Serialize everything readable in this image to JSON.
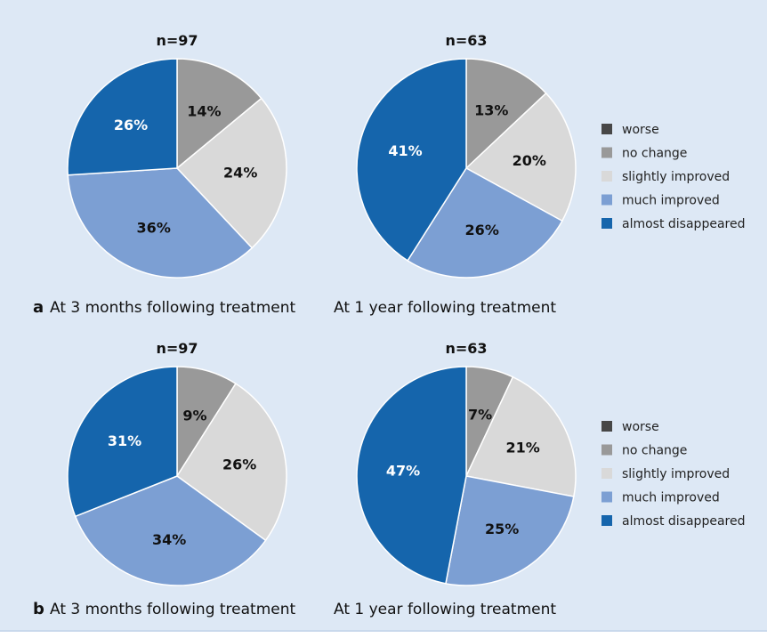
{
  "colors": {
    "background": "#dde8f5",
    "worse": "#474747",
    "no_change": "#999999",
    "slightly_improved": "#d9d9d9",
    "much_improved": "#7c9fd3",
    "almost_disappeared": "#1565ac"
  },
  "legend": {
    "entries": [
      {
        "label": "worse",
        "color_key": "worse"
      },
      {
        "label": "no change",
        "color_key": "no_change"
      },
      {
        "label": "slightly improved",
        "color_key": "slightly_improved"
      },
      {
        "label": "much improved",
        "color_key": "much_improved"
      },
      {
        "label": "almost disappeared",
        "color_key": "almost_disappeared"
      }
    ]
  },
  "chart_data": [
    {
      "type": "pie",
      "panel": "a",
      "title": "n=97",
      "caption": "At 3 months following treatment",
      "categories": [
        "worse",
        "no change",
        "slightly improved",
        "much improved",
        "almost disappeared"
      ],
      "values": [
        0,
        14,
        24,
        36,
        26
      ],
      "value_labels": [
        "",
        "14%",
        "24%",
        "36%",
        "26%"
      ],
      "legend_position": "right"
    },
    {
      "type": "pie",
      "panel": "a",
      "title": "n=63",
      "caption": "At 1 year following treatment",
      "categories": [
        "worse",
        "no change",
        "slightly improved",
        "much improved",
        "almost disappeared"
      ],
      "values": [
        0,
        13,
        20,
        26,
        41
      ],
      "value_labels": [
        "",
        "13%",
        "20%",
        "26%",
        "41%"
      ],
      "legend_position": "right"
    },
    {
      "type": "pie",
      "panel": "b",
      "title": "n=97",
      "caption": "At 3 months following treatment",
      "categories": [
        "worse",
        "no change",
        "slightly improved",
        "much improved",
        "almost disappeared"
      ],
      "values": [
        0,
        9,
        26,
        34,
        31
      ],
      "value_labels": [
        "",
        "9%",
        "26%",
        "34%",
        "31%"
      ],
      "legend_position": "right"
    },
    {
      "type": "pie",
      "panel": "b",
      "title": "n=63",
      "caption": "At 1 year following treatment",
      "categories": [
        "worse",
        "no change",
        "slightly improved",
        "much improved",
        "almost disappeared"
      ],
      "values": [
        0,
        7,
        21,
        25,
        47
      ],
      "value_labels": [
        "",
        "7%",
        "21%",
        "25%",
        "47%"
      ],
      "legend_position": "right"
    }
  ]
}
